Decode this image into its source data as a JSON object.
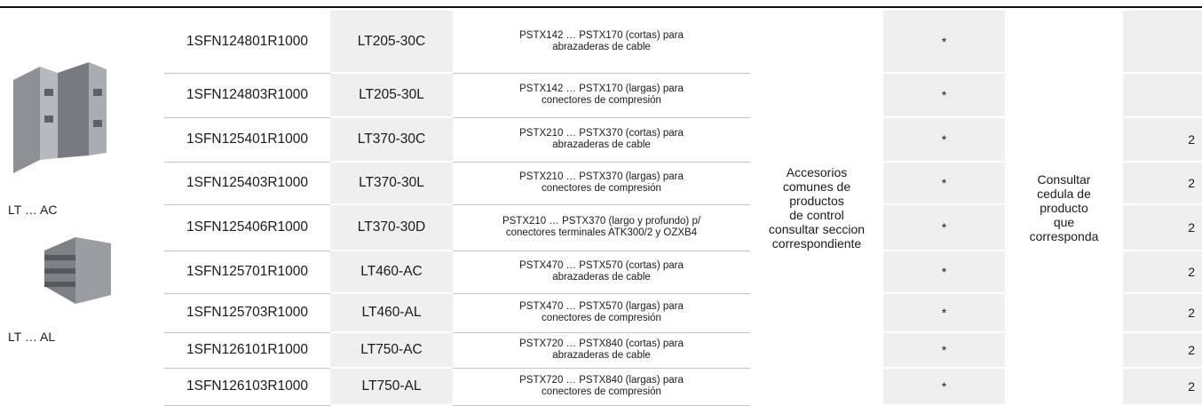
{
  "images": [
    {
      "label": "LT … AC"
    },
    {
      "label": "LT … AL"
    }
  ],
  "table": {
    "shared_note": [
      "Accesorios",
      "comunes de",
      "productos",
      "de control",
      "consultar seccion",
      "correspondiente"
    ],
    "shared_ref": [
      "Consultar",
      "cedula de",
      "producto",
      "que",
      "corresponda"
    ],
    "rows": [
      {
        "code": "1SFN124801R1000",
        "type": "LT205-30C",
        "description": [
          "PSTX142 … PSTX170 (cortas) para",
          "abrazaderas de cable"
        ],
        "mark": "*",
        "qty": null
      },
      {
        "code": "1SFN124803R1000",
        "type": "LT205-30L",
        "description": [
          "PSTX142 … PSTX170 (largas) para",
          "conectores de compresión"
        ],
        "mark": "*",
        "qty": null
      },
      {
        "code": "1SFN125401R1000",
        "type": "LT370-30C",
        "description": [
          "PSTX210 … PSTX370 (cortas) para",
          "abrazaderas de cable"
        ],
        "mark": "*",
        "qty": "2"
      },
      {
        "code": "1SFN125403R1000",
        "type": "LT370-30L",
        "description": [
          "PSTX210 … PSTX370 (largas) para",
          "conectores de compresión"
        ],
        "mark": "*",
        "qty": "2"
      },
      {
        "code": "1SFN125406R1000",
        "type": "LT370-30D",
        "description": [
          "PSTX210 … PSTX370 (largo y profundo) p/",
          "conectores terminales ATK300/2 y OZXB4"
        ],
        "mark": "*",
        "qty": "2"
      },
      {
        "code": "1SFN125701R1000",
        "type": "LT460-AC",
        "description": [
          "PSTX470 … PSTX570 (cortas) para",
          "abrazaderas de cable"
        ],
        "mark": "*",
        "qty": "2"
      },
      {
        "code": "1SFN125703R1000",
        "type": "LT460-AL",
        "description": [
          "PSTX470 … PSTX570 (largas) para",
          "conectores de compresión"
        ],
        "mark": "*",
        "qty": "2"
      },
      {
        "code": "1SFN126101R1000",
        "type": "LT750-AC",
        "description": [
          "PSTX720 … PSTX840 (cortas) para",
          "abrazaderas de cable"
        ],
        "mark": "*",
        "qty": "2"
      },
      {
        "code": "1SFN126103R1000",
        "type": "LT750-AL",
        "description": [
          "PSTX720 … PSTX840 (largas) para",
          "conectores de compresión"
        ],
        "mark": "*",
        "qty": "2"
      }
    ]
  }
}
